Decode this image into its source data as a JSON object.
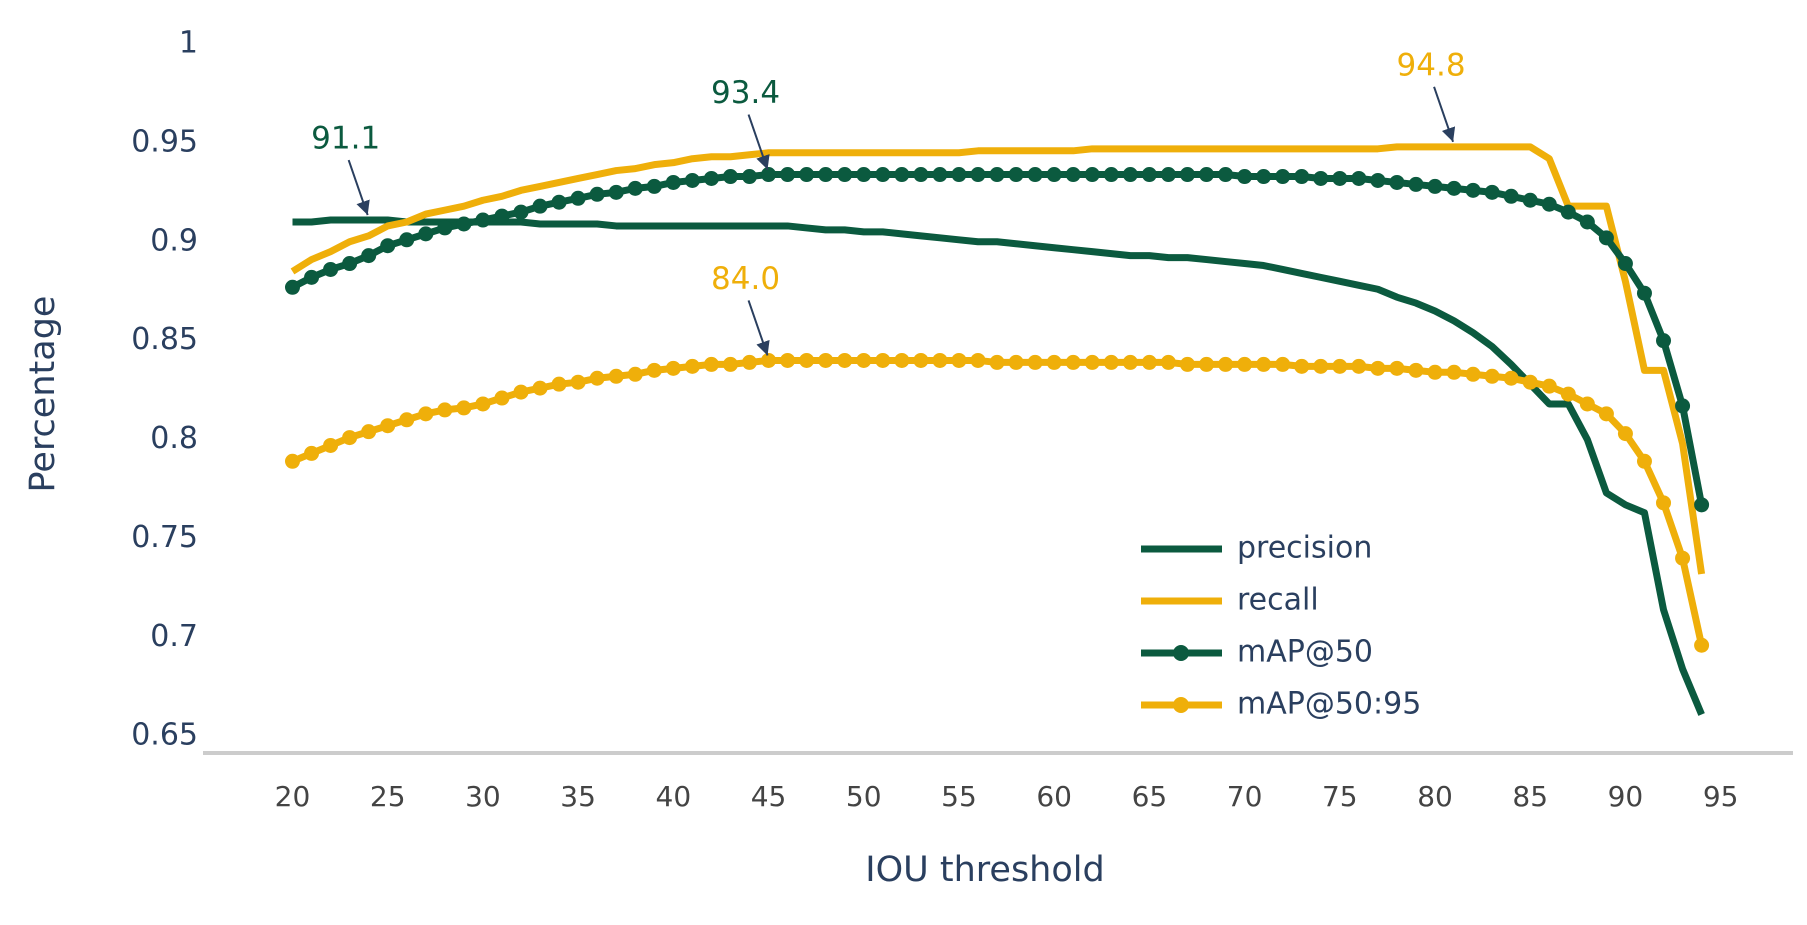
{
  "chart_data": {
    "type": "line",
    "x_label": "IOU threshold",
    "y_label": "Percentage",
    "x": [
      20,
      21,
      22,
      23,
      24,
      25,
      26,
      27,
      28,
      29,
      30,
      31,
      32,
      33,
      34,
      35,
      36,
      37,
      38,
      39,
      40,
      41,
      42,
      43,
      44,
      45,
      46,
      47,
      48,
      49,
      50,
      51,
      52,
      53,
      54,
      55,
      56,
      57,
      58,
      59,
      60,
      61,
      62,
      63,
      64,
      65,
      66,
      67,
      68,
      69,
      70,
      71,
      72,
      73,
      74,
      75,
      76,
      77,
      78,
      79,
      80,
      81,
      82,
      83,
      84,
      85,
      86,
      87,
      88,
      89,
      90,
      91,
      92,
      93,
      94
    ],
    "series": [
      {
        "name": "precision",
        "color": "#0b5a3f",
        "mode": "lines",
        "values": [
          0.91,
          0.91,
          0.911,
          0.911,
          0.911,
          0.911,
          0.91,
          0.91,
          0.91,
          0.91,
          0.91,
          0.91,
          0.91,
          0.909,
          0.909,
          0.909,
          0.909,
          0.908,
          0.908,
          0.908,
          0.908,
          0.908,
          0.908,
          0.908,
          0.908,
          0.908,
          0.908,
          0.907,
          0.906,
          0.906,
          0.905,
          0.905,
          0.904,
          0.903,
          0.902,
          0.901,
          0.9,
          0.9,
          0.899,
          0.898,
          0.897,
          0.896,
          0.895,
          0.894,
          0.893,
          0.893,
          0.892,
          0.892,
          0.891,
          0.89,
          0.889,
          0.888,
          0.886,
          0.884,
          0.882,
          0.88,
          0.878,
          0.876,
          0.872,
          0.869,
          0.865,
          0.86,
          0.854,
          0.847,
          0.838,
          0.828,
          0.818,
          0.818,
          0.8,
          0.773,
          0.767,
          0.763,
          0.714,
          0.684,
          0.661
        ]
      },
      {
        "name": "recall",
        "color": "#efaf0a",
        "mode": "lines",
        "values": [
          0.885,
          0.891,
          0.895,
          0.9,
          0.903,
          0.908,
          0.91,
          0.914,
          0.916,
          0.918,
          0.921,
          0.923,
          0.926,
          0.928,
          0.93,
          0.932,
          0.934,
          0.936,
          0.937,
          0.939,
          0.94,
          0.942,
          0.943,
          0.943,
          0.944,
          0.945,
          0.945,
          0.945,
          0.945,
          0.945,
          0.945,
          0.945,
          0.945,
          0.945,
          0.945,
          0.945,
          0.946,
          0.946,
          0.946,
          0.946,
          0.946,
          0.946,
          0.947,
          0.947,
          0.947,
          0.947,
          0.947,
          0.947,
          0.947,
          0.947,
          0.947,
          0.947,
          0.947,
          0.947,
          0.947,
          0.947,
          0.947,
          0.947,
          0.948,
          0.948,
          0.948,
          0.948,
          0.948,
          0.948,
          0.948,
          0.948,
          0.942,
          0.918,
          0.918,
          0.918,
          0.88,
          0.835,
          0.835,
          0.798,
          0.732
        ]
      },
      {
        "name": "mAP@50",
        "color": "#0b5a3f",
        "mode": "lines+markers",
        "values": [
          0.877,
          0.882,
          0.886,
          0.889,
          0.893,
          0.898,
          0.901,
          0.904,
          0.907,
          0.909,
          0.911,
          0.913,
          0.915,
          0.918,
          0.92,
          0.922,
          0.924,
          0.925,
          0.927,
          0.928,
          0.93,
          0.931,
          0.932,
          0.933,
          0.933,
          0.934,
          0.934,
          0.934,
          0.934,
          0.934,
          0.934,
          0.934,
          0.934,
          0.934,
          0.934,
          0.934,
          0.934,
          0.934,
          0.934,
          0.934,
          0.934,
          0.934,
          0.934,
          0.934,
          0.934,
          0.934,
          0.934,
          0.934,
          0.934,
          0.934,
          0.933,
          0.933,
          0.933,
          0.933,
          0.932,
          0.932,
          0.932,
          0.931,
          0.93,
          0.929,
          0.928,
          0.927,
          0.926,
          0.925,
          0.923,
          0.921,
          0.919,
          0.915,
          0.91,
          0.902,
          0.889,
          0.874,
          0.85,
          0.817,
          0.767
        ]
      },
      {
        "name": "mAP@50:95",
        "color": "#efaf0a",
        "mode": "lines+markers",
        "values": [
          0.789,
          0.793,
          0.797,
          0.801,
          0.804,
          0.807,
          0.81,
          0.813,
          0.815,
          0.816,
          0.818,
          0.821,
          0.824,
          0.826,
          0.828,
          0.829,
          0.831,
          0.832,
          0.833,
          0.835,
          0.836,
          0.837,
          0.838,
          0.838,
          0.839,
          0.84,
          0.84,
          0.84,
          0.84,
          0.84,
          0.84,
          0.84,
          0.84,
          0.84,
          0.84,
          0.84,
          0.84,
          0.839,
          0.839,
          0.839,
          0.839,
          0.839,
          0.839,
          0.839,
          0.839,
          0.839,
          0.839,
          0.838,
          0.838,
          0.838,
          0.838,
          0.838,
          0.838,
          0.837,
          0.837,
          0.837,
          0.837,
          0.836,
          0.836,
          0.835,
          0.834,
          0.834,
          0.833,
          0.832,
          0.831,
          0.829,
          0.827,
          0.823,
          0.818,
          0.813,
          0.803,
          0.789,
          0.768,
          0.74,
          0.696
        ]
      }
    ],
    "annotations": [
      {
        "text": "91.1",
        "x": 24,
        "y": 0.911,
        "color": "#0b5a3f"
      },
      {
        "text": "93.4",
        "x": 45,
        "y": 0.934,
        "color": "#0b5a3f"
      },
      {
        "text": "94.8",
        "x": 81,
        "y": 0.948,
        "color": "#efaf0a"
      },
      {
        "text": "84.0",
        "x": 45,
        "y": 0.84,
        "color": "#efaf0a"
      }
    ],
    "xlim": [
      15.3,
      98.8
    ],
    "ylim": [
      0.64,
      1.0
    ],
    "xticks": [
      20,
      25,
      30,
      35,
      40,
      45,
      50,
      55,
      60,
      65,
      70,
      75,
      80,
      85,
      90,
      95
    ],
    "yticks": [
      0.65,
      0.7,
      0.75,
      0.8,
      0.85,
      0.9,
      0.95,
      1
    ],
    "grid": false,
    "legend_position": "lower right"
  }
}
